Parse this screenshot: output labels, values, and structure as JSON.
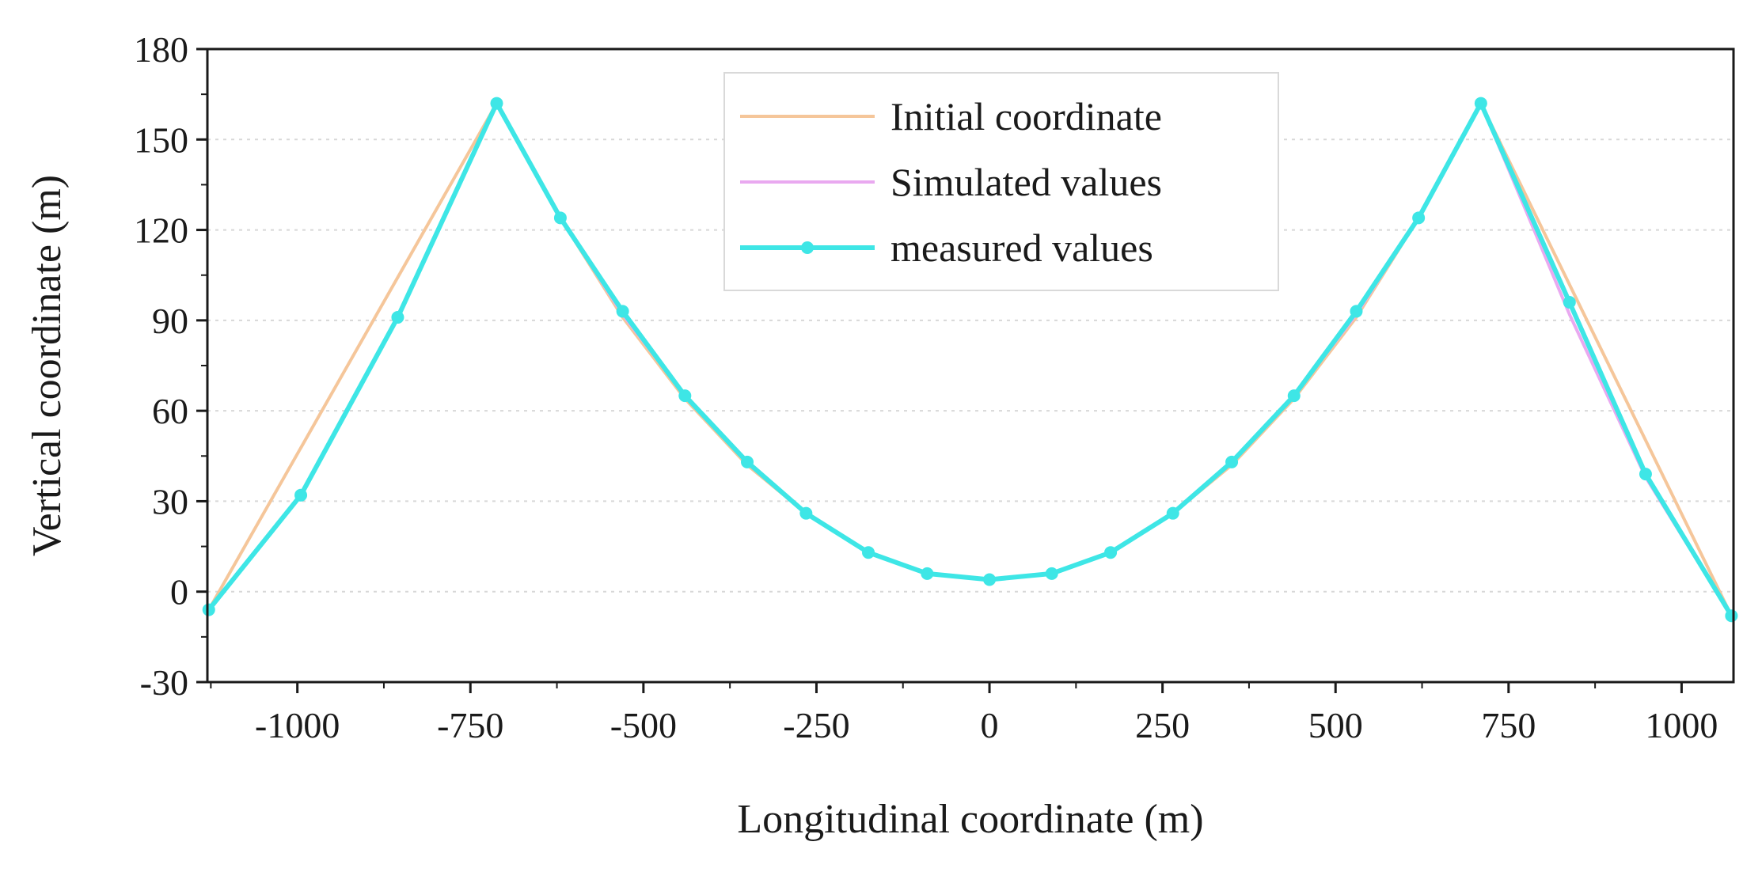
{
  "chart_data": {
    "type": "line",
    "title": "",
    "xlabel": "Longitudinal coordinate (m)",
    "ylabel": "Vertical coordinate (m)",
    "xlim": [
      -1130,
      1075
    ],
    "ylim": [
      -30,
      180
    ],
    "xticks": [
      -1000,
      -750,
      -500,
      -250,
      0,
      250,
      500,
      750,
      1000
    ],
    "yticks": [
      -30,
      0,
      30,
      60,
      90,
      120,
      150,
      180
    ],
    "grid": "horizontal-dotted",
    "legend_position": "top-center",
    "series": [
      {
        "name": "Initial coordinate",
        "color": "#f5c69a",
        "markers": false,
        "x": [
          -1128,
          -712,
          -620,
          -530,
          -440,
          -350,
          -265,
          -175,
          -90,
          0,
          90,
          175,
          265,
          350,
          440,
          530,
          620,
          710,
          1072
        ],
        "y": [
          -6,
          162,
          124,
          91,
          64,
          42,
          26,
          13,
          6,
          4,
          6,
          13,
          26,
          42,
          64,
          91,
          124,
          162,
          -8
        ]
      },
      {
        "name": "Simulated values",
        "color": "#e9a9f0",
        "markers": false,
        "x": [
          -1128,
          -995,
          -855,
          -712,
          -620,
          -530,
          -440,
          -350,
          -265,
          -175,
          -90,
          0,
          90,
          175,
          265,
          350,
          440,
          530,
          620,
          710,
          838,
          948,
          1072
        ],
        "y": [
          -6,
          32,
          91,
          162,
          124,
          92,
          65,
          43,
          26,
          13,
          6,
          4,
          6,
          13,
          26,
          43,
          65,
          92,
          124,
          162,
          92,
          38,
          -8
        ]
      },
      {
        "name": "measured values",
        "color": "#3ee6e6",
        "markers": true,
        "x": [
          -1128,
          -995,
          -855,
          -712,
          -620,
          -530,
          -440,
          -350,
          -265,
          -175,
          -90,
          0,
          90,
          175,
          265,
          350,
          440,
          530,
          620,
          710,
          838,
          948,
          1072
        ],
        "y": [
          -6,
          32,
          91,
          162,
          124,
          93,
          65,
          43,
          26,
          13,
          6,
          4,
          6,
          13,
          26,
          43,
          65,
          93,
          124,
          162,
          96,
          39,
          -8
        ]
      }
    ]
  }
}
